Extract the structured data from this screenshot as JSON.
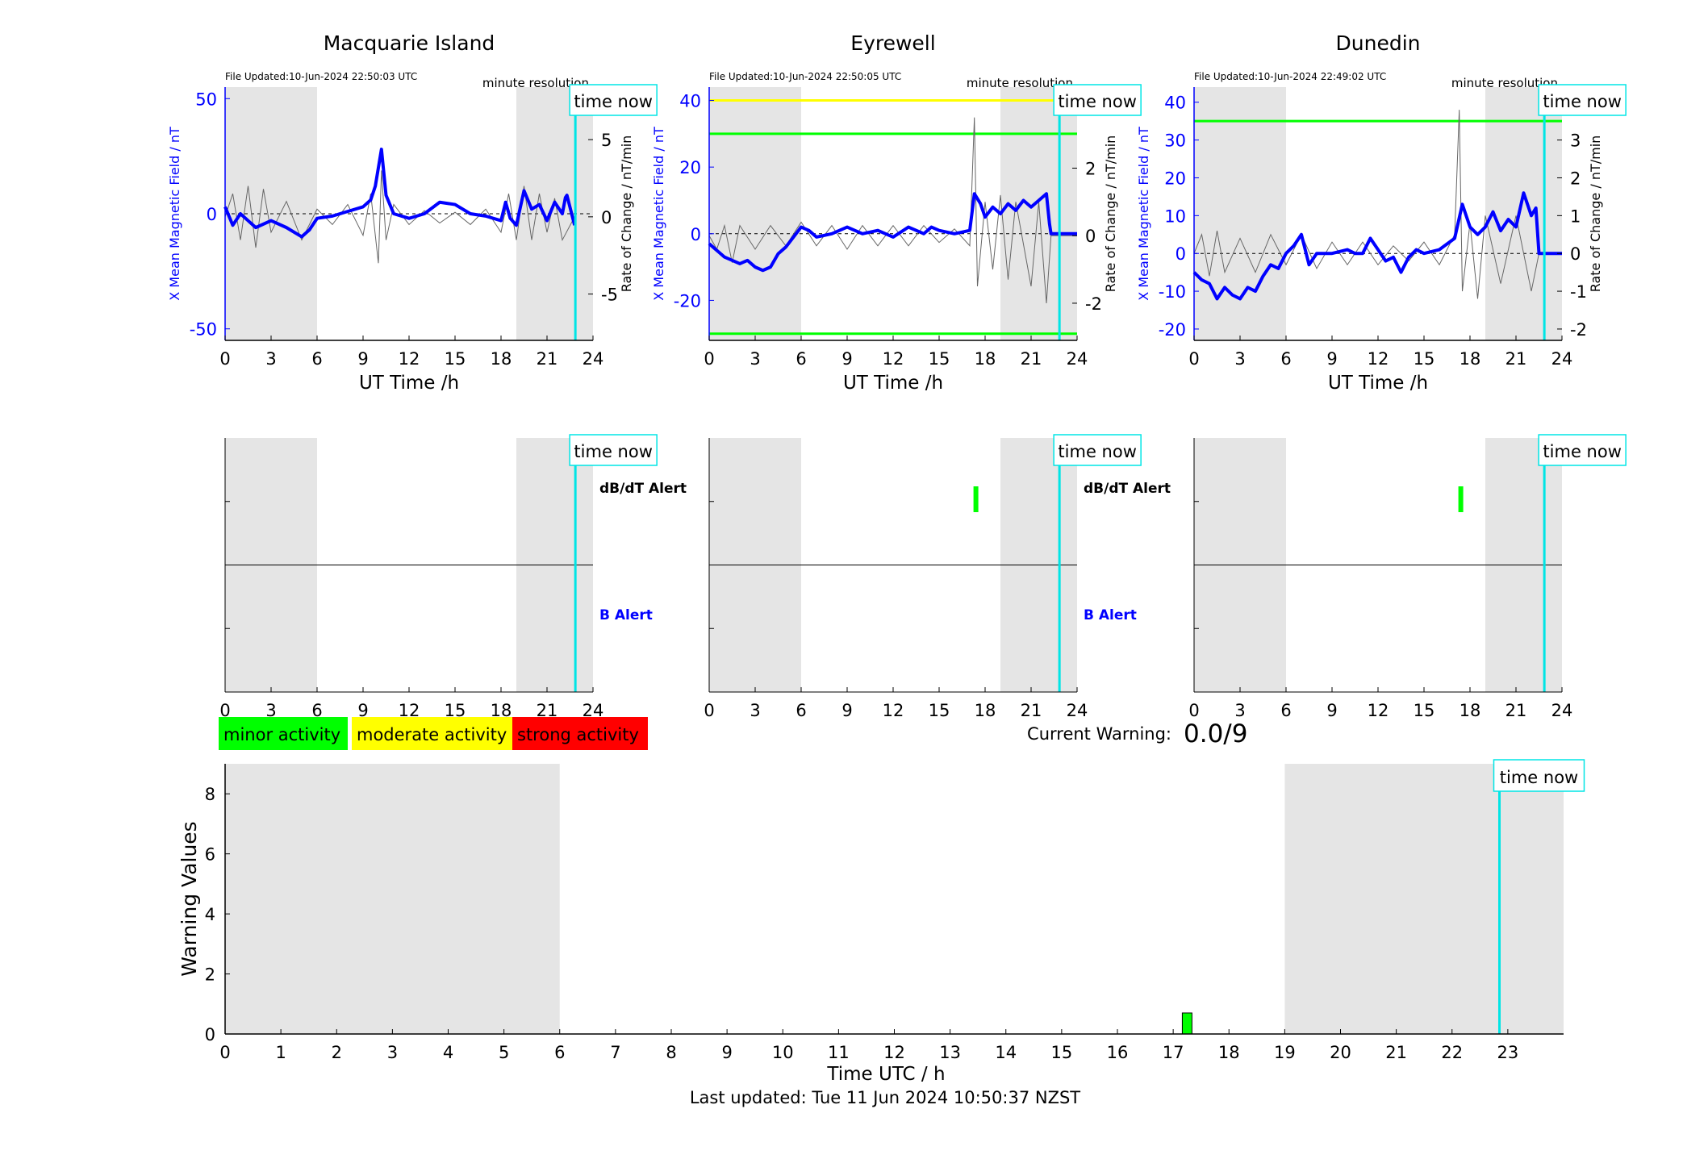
{
  "colors": {
    "shade": "#e5e5e5",
    "xline": "#0000ff",
    "dbdt": "#666666",
    "timenow": "#00e5e5",
    "green": "#00ff00",
    "yellow": "#ffff00",
    "red": "#ff0000"
  },
  "stations": [
    {
      "name": "Macquarie Island",
      "file_updated": "File Updated:10-Jun-2024 22:50:03 UTC",
      "resolution": "minute resolution",
      "ylabel_left": "X Mean Magnetic Field / nT",
      "ylabel_right": "Rate of Change / nT/min",
      "xlabel": "UT Time /h",
      "time_now_label": "time now",
      "ylim": [
        -55,
        55
      ],
      "yticks": [
        -50,
        0,
        50
      ],
      "ylim_right": [
        -8,
        8.4
      ],
      "yticks_right": [
        -5,
        0,
        5
      ],
      "thresholds": [],
      "alerts": {
        "dbdt_label": "dB/dT Alert",
        "b_label": "B Alert",
        "dbdt_marks": []
      },
      "x_series": [
        [
          0,
          3
        ],
        [
          0.5,
          -5
        ],
        [
          1,
          0
        ],
        [
          1.5,
          -3
        ],
        [
          2,
          -6
        ],
        [
          3,
          -3
        ],
        [
          4,
          -6
        ],
        [
          5,
          -10
        ],
        [
          5.5,
          -7
        ],
        [
          6,
          -2
        ],
        [
          7,
          -1
        ],
        [
          8,
          1
        ],
        [
          9,
          3
        ],
        [
          9.5,
          6
        ],
        [
          9.8,
          12
        ],
        [
          10,
          20
        ],
        [
          10.2,
          28
        ],
        [
          10.5,
          8
        ],
        [
          11,
          0
        ],
        [
          12,
          -2
        ],
        [
          13,
          0
        ],
        [
          14,
          5
        ],
        [
          15,
          4
        ],
        [
          16,
          0
        ],
        [
          17,
          -1
        ],
        [
          18,
          -3
        ],
        [
          18.3,
          5
        ],
        [
          18.6,
          -2
        ],
        [
          19,
          -5
        ],
        [
          19.5,
          10
        ],
        [
          20,
          2
        ],
        [
          20.5,
          4
        ],
        [
          21,
          -3
        ],
        [
          21.5,
          5
        ],
        [
          22,
          0
        ],
        [
          22.2,
          7
        ],
        [
          22.3,
          8
        ],
        [
          22.8,
          -5
        ]
      ],
      "dbdt_series": [
        [
          0,
          0
        ],
        [
          0.5,
          1.5
        ],
        [
          1,
          -1.5
        ],
        [
          1.5,
          2
        ],
        [
          2,
          -2
        ],
        [
          2.5,
          1.8
        ],
        [
          3,
          -1
        ],
        [
          4,
          1
        ],
        [
          5,
          -1.5
        ],
        [
          6,
          0.5
        ],
        [
          7,
          -0.5
        ],
        [
          8,
          0.8
        ],
        [
          9,
          -1.2
        ],
        [
          9.5,
          1.5
        ],
        [
          10,
          -3
        ],
        [
          10.2,
          3
        ],
        [
          10.5,
          -1.5
        ],
        [
          11,
          0.8
        ],
        [
          12,
          -0.5
        ],
        [
          13,
          0.4
        ],
        [
          14,
          -0.4
        ],
        [
          15,
          0.3
        ],
        [
          16,
          -0.5
        ],
        [
          17,
          0.5
        ],
        [
          18,
          -1
        ],
        [
          18.5,
          1.5
        ],
        [
          19,
          -1.5
        ],
        [
          19.5,
          2
        ],
        [
          20,
          -1.5
        ],
        [
          20.5,
          1.5
        ],
        [
          21,
          -1
        ],
        [
          21.5,
          1.2
        ],
        [
          22,
          -1.5
        ],
        [
          22.8,
          0
        ]
      ],
      "time_now": 22.85,
      "shaded": [
        [
          0,
          6
        ],
        [
          19,
          24
        ]
      ]
    },
    {
      "name": "Eyrewell",
      "file_updated": "File Updated:10-Jun-2024 22:50:05 UTC",
      "resolution": "minute resolution",
      "ylabel_left": "X Mean Magnetic Field / nT",
      "ylabel_right": "Rate of Change / nT/min",
      "xlabel": "UT Time /h",
      "time_now_label": "time now",
      "ylim": [
        -32,
        44
      ],
      "yticks": [
        -20,
        0,
        20,
        40
      ],
      "ylim_right": [
        -3.1,
        4.4
      ],
      "yticks_right": [
        -2,
        0,
        2,
        4
      ],
      "thresholds": [
        {
          "value": 40,
          "color": "#ffff00"
        },
        {
          "value": 30,
          "color": "#00ff00"
        },
        {
          "value": -30,
          "color": "#00ff00"
        }
      ],
      "alerts": {
        "dbdt_label": "dB/dT Alert",
        "b_label": "B Alert",
        "dbdt_marks": [
          17.4
        ]
      },
      "x_series": [
        [
          0,
          -3
        ],
        [
          0.5,
          -5
        ],
        [
          1,
          -7
        ],
        [
          1.5,
          -8
        ],
        [
          2,
          -9
        ],
        [
          2.5,
          -8
        ],
        [
          3,
          -10
        ],
        [
          3.5,
          -11
        ],
        [
          4,
          -10
        ],
        [
          4.5,
          -6
        ],
        [
          5,
          -4
        ],
        [
          5.5,
          -1
        ],
        [
          6,
          2
        ],
        [
          6.5,
          1
        ],
        [
          7,
          -1
        ],
        [
          8,
          0
        ],
        [
          9,
          2
        ],
        [
          10,
          0
        ],
        [
          11,
          1
        ],
        [
          12,
          -1
        ],
        [
          13,
          2
        ],
        [
          14,
          0
        ],
        [
          14.5,
          2
        ],
        [
          15,
          1
        ],
        [
          16,
          0
        ],
        [
          17,
          1
        ],
        [
          17.3,
          12
        ],
        [
          17.7,
          9
        ],
        [
          18,
          5
        ],
        [
          18.5,
          8
        ],
        [
          19,
          6
        ],
        [
          19.5,
          9
        ],
        [
          20,
          7
        ],
        [
          20.5,
          10
        ],
        [
          21,
          8
        ],
        [
          21.5,
          10
        ],
        [
          22,
          12
        ],
        [
          22.2,
          3
        ],
        [
          22.3,
          0
        ],
        [
          24,
          0
        ]
      ],
      "dbdt_series": [
        [
          0,
          0
        ],
        [
          0.5,
          -0.4
        ],
        [
          1,
          0.3
        ],
        [
          1.5,
          -0.8
        ],
        [
          2,
          0.3
        ],
        [
          3,
          -0.4
        ],
        [
          4,
          0.3
        ],
        [
          5,
          -0.3
        ],
        [
          6,
          0.4
        ],
        [
          7,
          -0.3
        ],
        [
          8,
          0.3
        ],
        [
          9,
          -0.4
        ],
        [
          10,
          0.3
        ],
        [
          11,
          -0.3
        ],
        [
          12,
          0.3
        ],
        [
          13,
          -0.3
        ],
        [
          14,
          0.3
        ],
        [
          15,
          -0.2
        ],
        [
          16,
          0.2
        ],
        [
          17,
          -0.3
        ],
        [
          17.3,
          3.5
        ],
        [
          17.5,
          -1.5
        ],
        [
          18,
          1
        ],
        [
          18.5,
          -1
        ],
        [
          19,
          1.2
        ],
        [
          19.5,
          -1.3
        ],
        [
          20,
          1
        ],
        [
          21,
          -1.5
        ],
        [
          21.5,
          1
        ],
        [
          22,
          -2
        ],
        [
          22.3,
          0
        ],
        [
          24,
          0
        ]
      ],
      "time_now": 22.85,
      "shaded": [
        [
          0,
          6
        ],
        [
          19,
          24
        ]
      ]
    },
    {
      "name": "Dunedin",
      "file_updated": "File Updated:10-Jun-2024 22:49:02 UTC",
      "resolution": "minute resolution",
      "ylabel_left": "X Mean Magnetic Field / nT",
      "ylabel_right": "Rate of Change / nT/min",
      "xlabel": "UT Time /h",
      "time_now_label": "time now",
      "ylim": [
        -23,
        44
      ],
      "yticks": [
        -20,
        -10,
        0,
        10,
        20,
        30,
        40
      ],
      "ylim_right": [
        -2.3,
        4.4
      ],
      "yticks_right": [
        -2,
        -1,
        0,
        1,
        2,
        3,
        4
      ],
      "thresholds": [
        {
          "value": 35,
          "color": "#00ff00"
        }
      ],
      "alerts": {
        "dbdt_label": "",
        "b_label": "",
        "dbdt_marks": [
          17.4
        ]
      },
      "x_series": [
        [
          0,
          -5
        ],
        [
          0.5,
          -7
        ],
        [
          1,
          -8
        ],
        [
          1.5,
          -12
        ],
        [
          2,
          -9
        ],
        [
          2.5,
          -11
        ],
        [
          3,
          -12
        ],
        [
          3.5,
          -9
        ],
        [
          4,
          -10
        ],
        [
          4.5,
          -6
        ],
        [
          5,
          -3
        ],
        [
          5.5,
          -4
        ],
        [
          6,
          0
        ],
        [
          6.5,
          2
        ],
        [
          7,
          5
        ],
        [
          7.5,
          -3
        ],
        [
          8,
          0
        ],
        [
          9,
          0
        ],
        [
          10,
          1
        ],
        [
          10.5,
          0
        ],
        [
          11,
          0
        ],
        [
          11.5,
          4
        ],
        [
          12,
          1
        ],
        [
          12.5,
          -2
        ],
        [
          13,
          -1
        ],
        [
          13.5,
          -5
        ],
        [
          14,
          -1
        ],
        [
          14.5,
          1
        ],
        [
          15,
          0
        ],
        [
          16,
          1
        ],
        [
          17,
          4
        ],
        [
          17.5,
          13
        ],
        [
          18,
          7
        ],
        [
          18.5,
          5
        ],
        [
          19,
          7
        ],
        [
          19.5,
          11
        ],
        [
          20,
          6
        ],
        [
          20.5,
          9
        ],
        [
          21,
          7
        ],
        [
          21.5,
          16
        ],
        [
          22,
          10
        ],
        [
          22.3,
          12
        ],
        [
          22.5,
          0
        ],
        [
          24,
          0
        ]
      ],
      "dbdt_series": [
        [
          0,
          0
        ],
        [
          0.5,
          0.5
        ],
        [
          1,
          -0.6
        ],
        [
          1.5,
          0.6
        ],
        [
          2,
          -0.5
        ],
        [
          3,
          0.4
        ],
        [
          4,
          -0.5
        ],
        [
          5,
          0.5
        ],
        [
          6,
          -0.3
        ],
        [
          7,
          0.5
        ],
        [
          8,
          -0.4
        ],
        [
          9,
          0.3
        ],
        [
          10,
          -0.3
        ],
        [
          11,
          0.3
        ],
        [
          12,
          -0.3
        ],
        [
          13,
          0.2
        ],
        [
          14,
          -0.2
        ],
        [
          15,
          0.3
        ],
        [
          16,
          -0.3
        ],
        [
          17,
          0.5
        ],
        [
          17.3,
          3.8
        ],
        [
          17.5,
          -1
        ],
        [
          18,
          0.8
        ],
        [
          18.5,
          -1.2
        ],
        [
          19,
          1
        ],
        [
          20,
          -0.8
        ],
        [
          21,
          1
        ],
        [
          22,
          -1
        ],
        [
          22.5,
          0
        ],
        [
          24,
          0
        ]
      ],
      "time_now": 22.85,
      "shaded": [
        [
          0,
          6
        ],
        [
          19,
          24
        ]
      ]
    }
  ],
  "ticks_x": [
    0,
    3,
    6,
    9,
    12,
    15,
    18,
    21,
    24
  ],
  "legend": {
    "minor": "minor activity",
    "moderate": "moderate activity",
    "strong": "strong activity"
  },
  "current_warning": {
    "label": "Current Warning:",
    "value": "0.0/9"
  },
  "chart_data": {
    "type": "bar",
    "ylabel": "Warning Values",
    "xlabel": "Time UTC / h",
    "ylim": [
      0,
      9
    ],
    "xlim": [
      0,
      24
    ],
    "yticks": [
      0,
      2,
      4,
      6,
      8
    ],
    "xticks": [
      0,
      1,
      2,
      3,
      4,
      5,
      6,
      7,
      8,
      9,
      10,
      11,
      12,
      13,
      14,
      15,
      16,
      17,
      18,
      19,
      20,
      21,
      22,
      23
    ],
    "bars": [
      {
        "x": 17.25,
        "value": 0.7,
        "color": "#00ff00"
      }
    ],
    "shaded": [
      [
        0,
        6
      ],
      [
        19,
        24
      ]
    ],
    "time_now": 22.85,
    "time_now_label": "time now"
  },
  "footer": "Last updated: Tue 11 Jun 2024 10:50:37 NZST"
}
